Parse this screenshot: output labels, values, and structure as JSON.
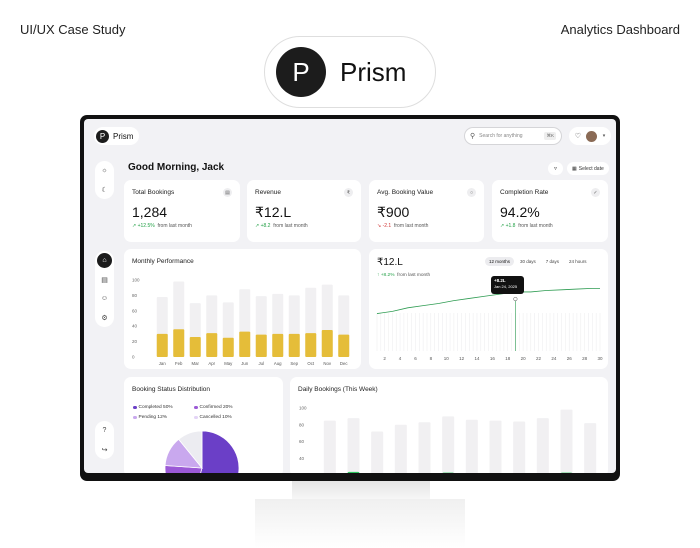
{
  "page": {
    "header_left": "UI/UX Case Study",
    "header_right": "Analytics Dashboard"
  },
  "brand": {
    "logo_letter": "P",
    "name": "Prism"
  },
  "app": {
    "logo_letter": "P",
    "name": "Prism",
    "search_placeholder": "Search for anything",
    "search_shortcut": "⌘K",
    "greeting": "Good Morning, Jack",
    "date_button": "Select date"
  },
  "sidebar": {
    "top": [
      "sun-icon",
      "moon-icon"
    ],
    "middle": [
      "home-icon",
      "clipboard-icon",
      "users-icon",
      "settings-icon"
    ],
    "bottom": [
      "help-icon",
      "logout-icon"
    ],
    "active": "home-icon"
  },
  "kpis": [
    {
      "label": "Total Bookings",
      "value": "1,284",
      "delta": "+12.5%",
      "delta_dir": "up",
      "suffix": "from last month",
      "icon": "calendar-icon"
    },
    {
      "label": "Revenue",
      "value": "₹12.L",
      "delta": "+8.2",
      "delta_dir": "up",
      "suffix": "from last month",
      "icon": "rupee-icon"
    },
    {
      "label": "Avg. Booking Value",
      "value": "₹900",
      "delta": "-2.1",
      "delta_dir": "down",
      "suffix": "from last month",
      "icon": "coin-icon"
    },
    {
      "label": "Completion Rate",
      "value": "94.2%",
      "delta": "+1.8",
      "delta_dir": "up",
      "suffix": "from last month",
      "icon": "check-icon"
    }
  ],
  "monthly": {
    "title": "Monthly Performance"
  },
  "revenue_chart": {
    "value": "₹12.L",
    "delta": "+8.2%",
    "suffix": "from last month",
    "tabs": [
      "12 months",
      "30 days",
      "7 days",
      "24 hours"
    ],
    "active_tab": "12 months",
    "tooltip_value": "+8.2L",
    "tooltip_date": "Jan 24, 2025"
  },
  "distribution": {
    "title": "Booking Status Distribution",
    "legend": [
      {
        "label": "Completed 50%",
        "color": "#6b3fc7"
      },
      {
        "label": "Confirmed 20%",
        "color": "#9b59d6"
      },
      {
        "label": "Pending 12%",
        "color": "#c9a8ee"
      },
      {
        "label": "Cancelled 10%",
        "color": "#e3d4f6"
      }
    ]
  },
  "daily": {
    "title": "Daily Bookings (This Week)"
  },
  "chart_data": [
    {
      "type": "bar",
      "title": "Monthly Performance",
      "categories": [
        "Jan",
        "Feb",
        "Mar",
        "Apr",
        "May",
        "Jun",
        "Jul",
        "Aug",
        "Sep",
        "Oct",
        "Nov",
        "Dec"
      ],
      "series": [
        {
          "values": [
            30,
            36,
            26,
            31,
            25,
            33,
            29,
            30,
            30,
            31,
            35,
            29
          ]
        },
        {
          "values": [
            78,
            98,
            70,
            80,
            71,
            88,
            79,
            82,
            80,
            90,
            94,
            80
          ]
        }
      ],
      "ylim": [
        0,
        100
      ],
      "yticks": [
        0,
        20,
        40,
        60,
        80,
        100
      ],
      "colors": {
        "primary": "#e5bd39",
        "background": "#f1f0f2"
      }
    },
    {
      "type": "line",
      "x_ticks": [
        2,
        4,
        6,
        8,
        10,
        12,
        14,
        16,
        18,
        20,
        22,
        24,
        26,
        28,
        30
      ],
      "x": [
        1,
        3,
        5,
        7,
        9,
        11,
        13,
        15,
        17,
        19,
        21,
        23,
        25,
        27,
        29,
        30
      ],
      "y": [
        5.2,
        5.5,
        6.0,
        6.3,
        6.6,
        7.0,
        7.3,
        7.6,
        7.9,
        8.2,
        8.2,
        8.4,
        8.5,
        8.6,
        8.7,
        8.7
      ],
      "ylim": [
        0,
        10
      ],
      "highlight_x": 19,
      "colors": {
        "line": "#2e9c52"
      }
    },
    {
      "type": "pie",
      "labels": [
        "Completed",
        "Confirmed",
        "Pending",
        "Cancelled"
      ],
      "values": [
        50,
        20,
        12,
        10
      ],
      "colors": [
        "#6b3fc7",
        "#9b59d6",
        "#c9a8ee",
        "#ececf1"
      ]
    },
    {
      "type": "bar",
      "title": "Daily Bookings (This Week)",
      "series": [
        {
          "values": [
            18,
            24,
            16,
            21,
            17,
            23,
            21,
            21,
            20,
            20,
            23,
            19
          ]
        },
        {
          "values": [
            85,
            88,
            72,
            80,
            83,
            90,
            86,
            85,
            84,
            88,
            98,
            82
          ]
        }
      ],
      "ylim": [
        0,
        100
      ],
      "yticks": [
        40,
        60,
        80,
        100
      ],
      "colors": {
        "primary": "#2cc45e",
        "background": "#f1f0f2"
      }
    }
  ]
}
